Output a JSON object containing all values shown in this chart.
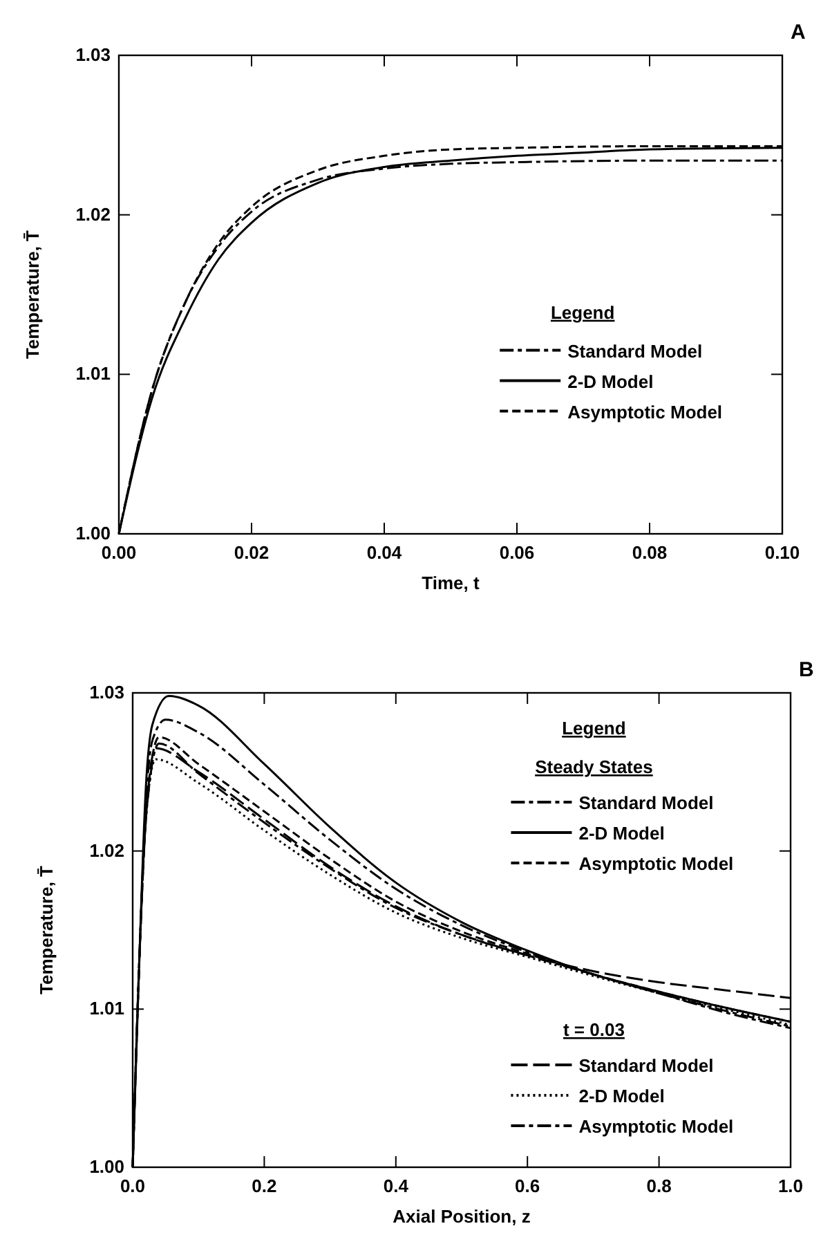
{
  "chart_data": [
    {
      "type": "line",
      "xlabel": "Time, t",
      "ylabel": "Temperature, T̄",
      "legend_title": "Legend",
      "legend": "right",
      "annotations": [
        "A"
      ],
      "xlim": [
        0,
        0.1
      ],
      "xticks": [
        {
          "value": 0,
          "label": "0.00"
        },
        0.02,
        0.04,
        0.06,
        0.08,
        {
          "value": 0.1,
          "label": "0.10"
        }
      ],
      "ylim": [
        1.0,
        1.03
      ],
      "yticks": [
        {
          "value": 1.0,
          "label": "1.00"
        },
        1.01,
        1.02,
        1.03
      ],
      "series": [
        {
          "name": "Standard Model",
          "color": "#000000",
          "line_style": "dashdot",
          "x": [
            0,
            0.005,
            0.01,
            0.015,
            0.02,
            0.03,
            0.04,
            0.05,
            0.06,
            0.08,
            0.1
          ],
          "values": [
            1.0,
            1.009,
            1.0145,
            1.018,
            1.0202,
            1.0222,
            1.0229,
            1.0232,
            1.0233,
            1.0234,
            1.0234
          ]
        },
        {
          "name": "2-D Model",
          "color": "#000000",
          "line_style": "solid",
          "x": [
            0,
            0.005,
            0.01,
            0.015,
            0.02,
            0.03,
            0.04,
            0.05,
            0.06,
            0.07,
            0.08,
            0.1
          ],
          "values": [
            1.0,
            1.0085,
            1.0135,
            1.0172,
            1.0195,
            1.022,
            1.023,
            1.0234,
            1.0237,
            1.0239,
            1.0241,
            1.0242
          ]
        },
        {
          "name": "Asymptotic Model",
          "color": "#000000",
          "line_style": "dashed",
          "x": [
            0,
            0.005,
            0.01,
            0.015,
            0.02,
            0.03,
            0.04,
            0.05,
            0.06,
            0.08,
            0.1
          ],
          "values": [
            1.0,
            1.009,
            1.0145,
            1.0182,
            1.0205,
            1.0228,
            1.0237,
            1.0241,
            1.0242,
            1.0243,
            1.0243
          ]
        }
      ]
    },
    {
      "type": "line",
      "xlabel": "Axial Position, z",
      "ylabel": "Temperature, T̄",
      "legend_title": "Legend",
      "legend": "right",
      "annotations": [
        "B",
        "Steady States",
        "t = 0.03"
      ],
      "xlim": [
        0,
        1
      ],
      "xticks": [
        {
          "value": 0,
          "label": "0.0"
        },
        0.2,
        0.4,
        0.6,
        0.8,
        {
          "value": 1,
          "label": "1.0"
        }
      ],
      "ylim": [
        1.0,
        1.03
      ],
      "yticks": [
        {
          "value": 1.0,
          "label": "1.00"
        },
        1.01,
        1.02,
        1.03
      ],
      "series": [
        {
          "name": "Standard Model",
          "color": "#000000",
          "line_style": "dashdot",
          "x": [
            0,
            0.01,
            0.02,
            0.03,
            0.05,
            0.1,
            0.2,
            0.3,
            0.4,
            0.5,
            0.6,
            0.7,
            0.8,
            0.9,
            1.0
          ],
          "values": [
            1.0,
            1.013,
            1.023,
            1.027,
            1.0283,
            1.0275,
            1.0242,
            1.0207,
            1.0176,
            1.0153,
            1.0136,
            1.0122,
            1.011,
            1.0098,
            1.0088
          ]
        },
        {
          "name": "2-D Model",
          "color": "#000000",
          "line_style": "solid",
          "x": [
            0,
            0.01,
            0.02,
            0.03,
            0.055,
            0.1,
            0.2,
            0.3,
            0.4,
            0.5,
            0.6,
            0.7,
            0.8,
            0.9,
            1.0
          ],
          "values": [
            1.0,
            1.013,
            1.024,
            1.028,
            1.0298,
            1.0292,
            1.0255,
            1.0215,
            1.018,
            1.0155,
            1.0137,
            1.0122,
            1.0111,
            1.0101,
            1.0092
          ]
        },
        {
          "name": "Asymptotic Model",
          "color": "#000000",
          "line_style": "dashed",
          "x": [
            0,
            0.01,
            0.02,
            0.03,
            0.04,
            0.1,
            0.2,
            0.3,
            0.4,
            0.5,
            0.6,
            0.7,
            0.8,
            0.9,
            1.0
          ],
          "values": [
            1.0,
            1.013,
            1.022,
            1.026,
            1.0272,
            1.0255,
            1.0225,
            1.0195,
            1.0168,
            1.0149,
            1.0135,
            1.0122,
            1.0111,
            1.0101,
            1.0092
          ]
        },
        {
          "name": "Standard Model",
          "color": "#000000",
          "line_style": "longdash",
          "x": [
            0,
            0.01,
            0.02,
            0.035,
            0.1,
            0.2,
            0.3,
            0.4,
            0.5,
            0.6,
            0.7,
            0.8,
            0.9,
            1.0
          ],
          "values": [
            1.0,
            1.013,
            1.022,
            1.0265,
            1.025,
            1.022,
            1.019,
            1.0165,
            1.0147,
            1.0134,
            1.0124,
            1.0117,
            1.0112,
            1.0107
          ]
        },
        {
          "name": "2-D Model",
          "color": "#000000",
          "line_style": "dotted",
          "x": [
            0,
            0.01,
            0.02,
            0.035,
            0.1,
            0.2,
            0.3,
            0.4,
            0.5,
            0.6,
            0.7,
            0.8,
            0.9,
            1.0
          ],
          "values": [
            1.0,
            1.013,
            1.022,
            1.0258,
            1.0243,
            1.0213,
            1.0185,
            1.0161,
            1.0145,
            1.0133,
            1.0121,
            1.011,
            1.01,
            1.009
          ]
        },
        {
          "name": "Asymptotic Model",
          "color": "#000000",
          "line_style": "dashdot",
          "x": [
            0,
            0.01,
            0.02,
            0.04,
            0.1,
            0.2,
            0.3,
            0.4,
            0.5,
            0.6,
            0.7,
            0.8,
            0.9,
            1.0
          ],
          "values": [
            1.0,
            1.013,
            1.022,
            1.0268,
            1.0249,
            1.0218,
            1.0189,
            1.0164,
            1.0147,
            1.0134,
            1.0122,
            1.011,
            1.0099,
            1.0089
          ]
        }
      ]
    }
  ]
}
